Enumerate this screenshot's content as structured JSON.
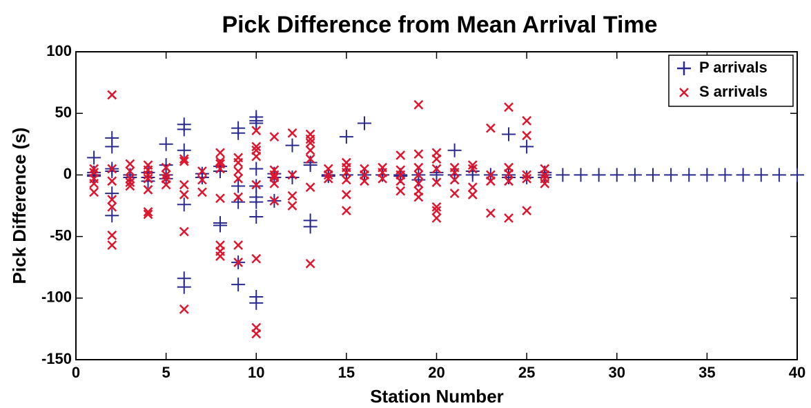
{
  "chart_data": {
    "type": "scatter",
    "title": "Pick Difference from Mean Arrival Time",
    "x_label": "Station Number",
    "y_label": "Pick Difference (s)",
    "xlim": [
      0,
      40
    ],
    "ylim": [
      -150,
      100
    ],
    "xticks": [
      0,
      5,
      10,
      15,
      20,
      25,
      30,
      35,
      40
    ],
    "yticks": [
      -150,
      -100,
      -50,
      0,
      50,
      100
    ],
    "legend": "upper right",
    "series": [
      {
        "name": "P arrivals",
        "color": "#2a2a8e",
        "marker": "plus",
        "x": [
          1,
          1,
          1,
          1,
          2,
          2,
          2,
          2,
          2,
          2,
          3,
          3,
          4,
          4,
          4,
          5,
          5,
          5,
          5,
          6,
          6,
          6,
          6,
          6,
          6,
          7,
          7,
          8,
          8,
          8,
          8,
          9,
          9,
          9,
          9,
          9,
          9,
          10,
          10,
          10,
          10,
          10,
          10,
          10,
          10,
          10,
          10,
          11,
          11,
          11,
          12,
          12,
          13,
          13,
          13,
          13,
          14,
          14,
          15,
          15,
          16,
          16,
          17,
          18,
          18,
          19,
          19,
          20,
          20,
          21,
          21,
          22,
          22,
          23,
          24,
          24,
          24,
          25,
          25,
          26,
          26,
          26,
          27,
          28,
          29,
          30,
          31,
          32,
          33,
          34,
          35,
          36,
          37,
          38,
          39,
          40
        ],
        "values": [
          14,
          2,
          0,
          -1,
          30,
          23,
          5,
          3,
          -15,
          -33,
          0,
          -2,
          2,
          -2,
          -5,
          25,
          8,
          0,
          -3,
          41,
          37,
          20,
          -24,
          -84,
          -91,
          1,
          -2,
          7,
          3,
          -39,
          -41,
          38,
          34,
          -9,
          -22,
          -71,
          -89,
          47,
          44,
          42,
          5,
          -9,
          -18,
          -22,
          -34,
          -99,
          -104,
          1,
          -2,
          -21,
          24,
          -2,
          10,
          8,
          -37,
          -42,
          0,
          -1,
          31,
          0,
          42,
          0,
          0,
          0,
          -1,
          0,
          -4,
          2,
          0,
          20,
          0,
          0,
          3,
          0,
          33,
          0,
          -2,
          23,
          -2,
          0,
          2,
          -2,
          0,
          0,
          0,
          0,
          0,
          0,
          0,
          0,
          0,
          0,
          0,
          0,
          0,
          0
        ]
      },
      {
        "name": "S arrivals",
        "color": "#e0142c",
        "marker": "x",
        "x": [
          1,
          1,
          1,
          1,
          1,
          2,
          2,
          2,
          2,
          2,
          2,
          2,
          3,
          3,
          3,
          3,
          3,
          4,
          4,
          4,
          4,
          4,
          4,
          4,
          5,
          5,
          5,
          5,
          6,
          6,
          6,
          6,
          6,
          6,
          7,
          7,
          7,
          8,
          8,
          8,
          8,
          8,
          8,
          8,
          8,
          9,
          9,
          9,
          9,
          9,
          9,
          9,
          10,
          10,
          10,
          10,
          10,
          10,
          10,
          10,
          11,
          11,
          11,
          11,
          11,
          11,
          12,
          12,
          12,
          12,
          13,
          13,
          13,
          13,
          13,
          13,
          13,
          14,
          14,
          14,
          15,
          15,
          15,
          15,
          15,
          15,
          16,
          16,
          16,
          17,
          17,
          17,
          18,
          18,
          18,
          18,
          18,
          19,
          19,
          19,
          19,
          19,
          19,
          19,
          20,
          20,
          20,
          20,
          20,
          20,
          20,
          21,
          21,
          21,
          21,
          22,
          22,
          22,
          22,
          23,
          23,
          23,
          23,
          24,
          24,
          24,
          24,
          24,
          25,
          25,
          25,
          25,
          25,
          26,
          26,
          26,
          26
        ],
        "values": [
          5,
          2,
          -3,
          -7,
          -14,
          65,
          5,
          -5,
          -20,
          -26,
          -49,
          -57,
          9,
          3,
          -3,
          -6,
          -9,
          8,
          4,
          0,
          -3,
          -12,
          -30,
          -32,
          6,
          0,
          -3,
          -8,
          13,
          11,
          -8,
          -16,
          -46,
          -109,
          3,
          -4,
          -14,
          18,
          11,
          9,
          5,
          -19,
          -57,
          -62,
          -66,
          14,
          10,
          3,
          -3,
          -18,
          -57,
          -71,
          36,
          23,
          20,
          15,
          -8,
          -68,
          -124,
          -129,
          31,
          4,
          0,
          -2,
          -7,
          -21,
          34,
          0,
          -17,
          -25,
          33,
          29,
          26,
          20,
          13,
          -10,
          -72,
          5,
          0,
          -3,
          10,
          6,
          2,
          -4,
          -16,
          -29,
          5,
          0,
          -5,
          6,
          2,
          -3,
          16,
          4,
          0,
          -5,
          -13,
          57,
          17,
          6,
          0,
          -7,
          -13,
          -18,
          18,
          13,
          5,
          -6,
          -26,
          -29,
          -35,
          6,
          2,
          -4,
          -15,
          8,
          5,
          -10,
          -16,
          38,
          0,
          -5,
          -31,
          55,
          6,
          1,
          -5,
          -35,
          44,
          32,
          0,
          -3,
          -29,
          5,
          0,
          -3,
          -7
        ]
      }
    ]
  }
}
